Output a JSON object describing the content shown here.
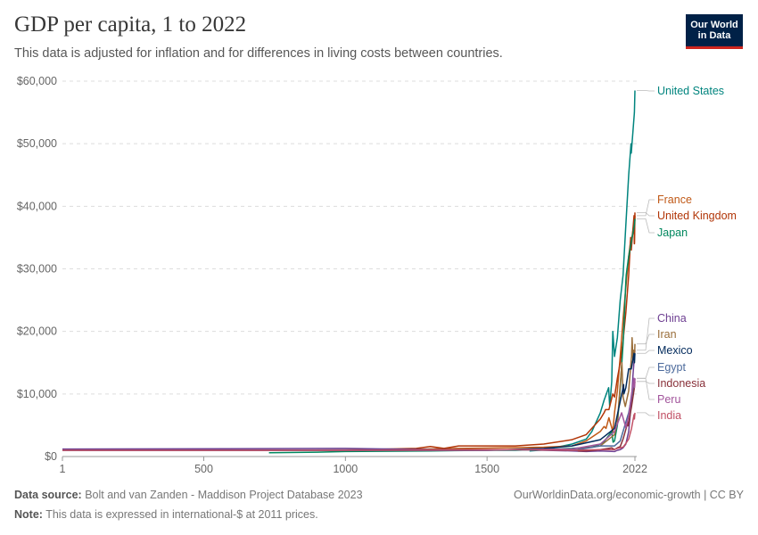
{
  "header": {
    "title": "GDP per capita, 1 to 2022",
    "subtitle": "This data is adjusted for inflation and for differences in living costs between countries.",
    "logo_line1": "Our World",
    "logo_line2": "in Data"
  },
  "footer": {
    "source_label": "Data source:",
    "source_text": "Bolt and van Zanden - Maddison Project Database 2023",
    "url_text": "OurWorldinData.org/economic-growth | CC BY",
    "note_label": "Note:",
    "note_text": "This data is expressed in international-$ at 2011 prices."
  },
  "chart_data": {
    "type": "line",
    "title": "GDP per capita, 1 to 2022",
    "subtitle": "This data is adjusted for inflation and for differences in living costs between countries.",
    "xlim": [
      1,
      2022
    ],
    "ylim": [
      0,
      60000
    ],
    "x_ticks": [
      1,
      500,
      1000,
      1500,
      2022
    ],
    "y_ticks": [
      0,
      10000,
      20000,
      30000,
      40000,
      50000,
      60000
    ],
    "y_tick_labels": [
      "$0",
      "$10,000",
      "$20,000",
      "$30,000",
      "$40,000",
      "$50,000",
      "$60,000"
    ],
    "grid": "horizontal dashed",
    "legend": "right end labels",
    "series": [
      {
        "name": "United States",
        "color": "#00847e",
        "points": [
          [
            1650,
            900
          ],
          [
            1700,
            1050
          ],
          [
            1800,
            2000
          ],
          [
            1850,
            2800
          ],
          [
            1870,
            4000
          ],
          [
            1900,
            7000
          ],
          [
            1913,
            9000
          ],
          [
            1929,
            11000
          ],
          [
            1933,
            8000
          ],
          [
            1940,
            12000
          ],
          [
            1944,
            20000
          ],
          [
            1950,
            16000
          ],
          [
            1960,
            19000
          ],
          [
            1970,
            25000
          ],
          [
            1980,
            29000
          ],
          [
            1990,
            37000
          ],
          [
            2000,
            45000
          ],
          [
            2008,
            50000
          ],
          [
            2009,
            48500
          ],
          [
            2015,
            52000
          ],
          [
            2020,
            55000
          ],
          [
            2022,
            58500
          ]
        ]
      },
      {
        "name": "France",
        "color": "#c05917",
        "points": [
          [
            1,
            1050
          ],
          [
            400,
            1050
          ],
          [
            700,
            1050
          ],
          [
            1000,
            1000
          ],
          [
            1280,
            1200
          ],
          [
            1400,
            1300
          ],
          [
            1500,
            1350
          ],
          [
            1700,
            1500
          ],
          [
            1800,
            1700
          ],
          [
            1850,
            2500
          ],
          [
            1900,
            4000
          ],
          [
            1913,
            4800
          ],
          [
            1920,
            4500
          ],
          [
            1930,
            6200
          ],
          [
            1944,
            4000
          ],
          [
            1950,
            7000
          ],
          [
            1960,
            10500
          ],
          [
            1970,
            16000
          ],
          [
            1980,
            22000
          ],
          [
            1990,
            27000
          ],
          [
            2000,
            32000
          ],
          [
            2008,
            35000
          ],
          [
            2010,
            34500
          ],
          [
            2019,
            37500
          ],
          [
            2020,
            34000
          ],
          [
            2022,
            38500
          ]
        ]
      },
      {
        "name": "United Kingdom",
        "color": "#b13507",
        "points": [
          [
            1,
            1000
          ],
          [
            700,
            1000
          ],
          [
            1000,
            1050
          ],
          [
            1250,
            1300
          ],
          [
            1300,
            1600
          ],
          [
            1348,
            1300
          ],
          [
            1400,
            1700
          ],
          [
            1500,
            1700
          ],
          [
            1600,
            1700
          ],
          [
            1700,
            2000
          ],
          [
            1800,
            2700
          ],
          [
            1850,
            3500
          ],
          [
            1900,
            6000
          ],
          [
            1913,
            7000
          ],
          [
            1918,
            7500
          ],
          [
            1930,
            7500
          ],
          [
            1944,
            10000
          ],
          [
            1950,
            9500
          ],
          [
            1960,
            12500
          ],
          [
            1970,
            15000
          ],
          [
            1980,
            18500
          ],
          [
            1990,
            23000
          ],
          [
            2000,
            29000
          ],
          [
            2007,
            35000
          ],
          [
            2009,
            33000
          ],
          [
            2019,
            38500
          ],
          [
            2020,
            34000
          ],
          [
            2022,
            39000
          ]
        ]
      },
      {
        "name": "Japan",
        "color": "#00875e",
        "points": [
          [
            730,
            600
          ],
          [
            900,
            700
          ],
          [
            1000,
            800
          ],
          [
            1300,
            900
          ],
          [
            1500,
            1000
          ],
          [
            1600,
            1000
          ],
          [
            1800,
            1300
          ],
          [
            1870,
            1500
          ],
          [
            1900,
            2000
          ],
          [
            1913,
            2400
          ],
          [
            1940,
            4000
          ],
          [
            1945,
            2300
          ],
          [
            1950,
            2500
          ],
          [
            1960,
            5000
          ],
          [
            1970,
            11000
          ],
          [
            1980,
            18000
          ],
          [
            1990,
            28000
          ],
          [
            1991,
            29000
          ],
          [
            2000,
            32000
          ],
          [
            2010,
            34500
          ],
          [
            2020,
            37000
          ],
          [
            2022,
            38000
          ]
        ]
      },
      {
        "name": "China",
        "color": "#6d3e91",
        "points": [
          [
            1,
            1200
          ],
          [
            1000,
            1300
          ],
          [
            1300,
            1100
          ],
          [
            1500,
            1100
          ],
          [
            1600,
            1100
          ],
          [
            1700,
            1000
          ],
          [
            1800,
            900
          ],
          [
            1850,
            800
          ],
          [
            1900,
            900
          ],
          [
            1950,
            800
          ],
          [
            1960,
            1000
          ],
          [
            1970,
            1100
          ],
          [
            1980,
            1400
          ],
          [
            1990,
            2000
          ],
          [
            2000,
            4000
          ],
          [
            2010,
            9000
          ],
          [
            2015,
            13000
          ],
          [
            2020,
            16000
          ],
          [
            2022,
            17000
          ]
        ]
      },
      {
        "name": "Iran",
        "color": "#996d39",
        "points": [
          [
            1820,
            1300
          ],
          [
            1850,
            1400
          ],
          [
            1900,
            1700
          ],
          [
            1950,
            3500
          ],
          [
            1960,
            5500
          ],
          [
            1976,
            15000
          ],
          [
            1980,
            9500
          ],
          [
            1988,
            8000
          ],
          [
            2000,
            10500
          ],
          [
            2010,
            16000
          ],
          [
            2012,
            19000
          ],
          [
            2015,
            15500
          ],
          [
            2017,
            17000
          ],
          [
            2020,
            15000
          ],
          [
            2022,
            18000
          ]
        ]
      },
      {
        "name": "Mexico",
        "color": "#00295b",
        "points": [
          [
            1,
            1000
          ],
          [
            1500,
            1000
          ],
          [
            1700,
            1300
          ],
          [
            1800,
            1700
          ],
          [
            1900,
            2700
          ],
          [
            1950,
            4500
          ],
          [
            1980,
            11000
          ],
          [
            1982,
            11500
          ],
          [
            1983,
            10000
          ],
          [
            1990,
            11000
          ],
          [
            2000,
            14000
          ],
          [
            2009,
            14000
          ],
          [
            2019,
            16500
          ],
          [
            2020,
            15000
          ],
          [
            2022,
            16500
          ]
        ]
      },
      {
        "name": "Egypt",
        "color": "#4c6a9c",
        "points": [
          [
            1,
            1000
          ],
          [
            1000,
            1050
          ],
          [
            1500,
            1050
          ],
          [
            1820,
            1100
          ],
          [
            1900,
            1700
          ],
          [
            1950,
            1700
          ],
          [
            1970,
            2500
          ],
          [
            1990,
            5500
          ],
          [
            2000,
            7000
          ],
          [
            2010,
            9500
          ],
          [
            2020,
            11500
          ],
          [
            2022,
            12500
          ]
        ]
      },
      {
        "name": "Indonesia",
        "color": "#883039",
        "points": [
          [
            1820,
            900
          ],
          [
            1850,
            900
          ],
          [
            1900,
            1100
          ],
          [
            1940,
            1400
          ],
          [
            1950,
            1100
          ],
          [
            1960,
            1400
          ],
          [
            1970,
            1600
          ],
          [
            1980,
            2800
          ],
          [
            1997,
            5500
          ],
          [
            1998,
            4900
          ],
          [
            2010,
            8000
          ],
          [
            2020,
            11000
          ],
          [
            2022,
            12000
          ]
        ]
      },
      {
        "name": "Peru",
        "color": "#a2559c",
        "points": [
          [
            1,
            1000
          ],
          [
            1500,
            1000
          ],
          [
            1600,
            1100
          ],
          [
            1800,
            1200
          ],
          [
            1900,
            2000
          ],
          [
            1950,
            4000
          ],
          [
            1975,
            7000
          ],
          [
            1990,
            4600
          ],
          [
            2000,
            6500
          ],
          [
            2010,
            10000
          ],
          [
            2019,
            12500
          ],
          [
            2020,
            11000
          ],
          [
            2022,
            12500
          ]
        ]
      },
      {
        "name": "India",
        "color": "#c15065",
        "points": [
          [
            1,
            1000
          ],
          [
            1000,
            1000
          ],
          [
            1600,
            1100
          ],
          [
            1700,
            1050
          ],
          [
            1800,
            1000
          ],
          [
            1900,
            1100
          ],
          [
            1947,
            1100
          ],
          [
            1960,
            1300
          ],
          [
            1980,
            1500
          ],
          [
            1990,
            2100
          ],
          [
            2000,
            2800
          ],
          [
            2010,
            4500
          ],
          [
            2019,
            6700
          ],
          [
            2020,
            6000
          ],
          [
            2022,
            7000
          ]
        ]
      }
    ]
  }
}
